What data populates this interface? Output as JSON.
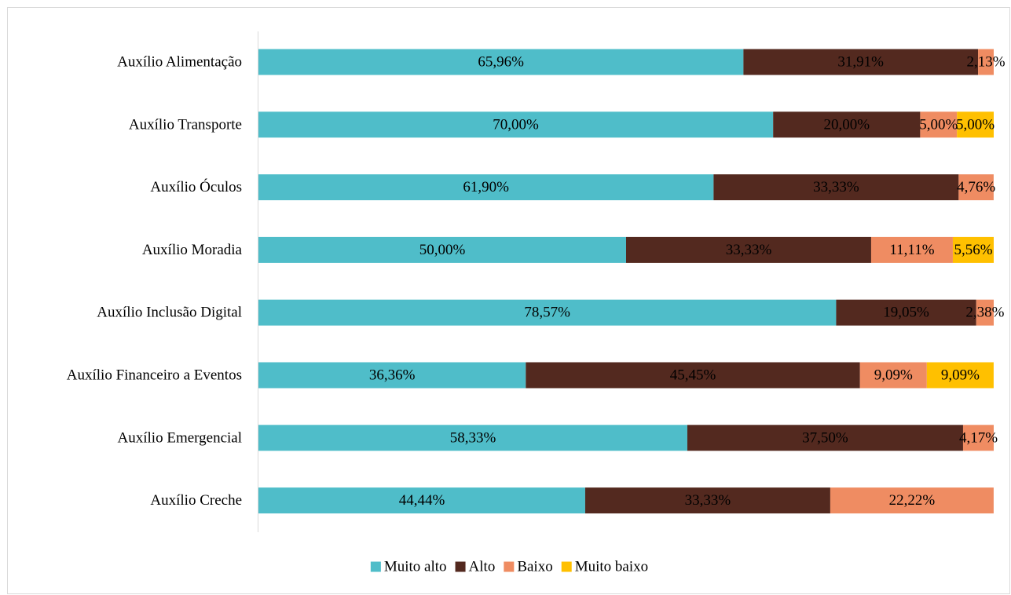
{
  "chart_data": {
    "type": "bar",
    "orientation": "horizontal",
    "stacked": true,
    "title": "",
    "xlabel": "",
    "ylabel": "",
    "xlim": [
      0,
      100
    ],
    "grid": false,
    "legend_position": "bottom",
    "categories": [
      "Auxílio Alimentação",
      "Auxílio Transporte",
      "Auxílio Óculos",
      "Auxílio Moradia",
      "Auxílio Inclusão Digital",
      "Auxílio Financeiro a Eventos",
      "Auxílio Emergencial",
      "Auxílio Creche"
    ],
    "series": [
      {
        "name": "Muito alto",
        "color": "#4FBDC9",
        "label_color": "#000000",
        "values": [
          65.96,
          70.0,
          61.9,
          50.0,
          78.57,
          36.36,
          58.33,
          44.44
        ],
        "labels": [
          "65,96%",
          "70,00%",
          "61,90%",
          "50,00%",
          "78,57%",
          "36,36%",
          "58,33%",
          "44,44%"
        ]
      },
      {
        "name": "Alto",
        "color": "#53291F",
        "label_color": "#000000",
        "values": [
          31.91,
          20.0,
          33.33,
          33.33,
          19.05,
          45.45,
          37.5,
          33.33
        ],
        "labels": [
          "31,91%",
          "20,00%",
          "33,33%",
          "33,33%",
          "19,05%",
          "45,45%",
          "37,50%",
          "33,33%"
        ]
      },
      {
        "name": "Baixo",
        "color": "#EF8C62",
        "label_color": "#000000",
        "values": [
          2.13,
          5.0,
          4.76,
          11.11,
          2.38,
          9.09,
          4.17,
          22.22
        ],
        "labels": [
          "2,13%",
          "5,00%",
          "4,76%",
          "11,11%",
          "2,38%",
          "9,09%",
          "4,17%",
          "22,22%"
        ]
      },
      {
        "name": "Muito baixo",
        "color": "#FFC000",
        "label_color": "#000000",
        "values": [
          0,
          5.0,
          0,
          5.56,
          0,
          9.09,
          0,
          0
        ],
        "labels": [
          "",
          "5,00%",
          "",
          "5,56%",
          "",
          "9,09%",
          "",
          ""
        ]
      }
    ]
  }
}
